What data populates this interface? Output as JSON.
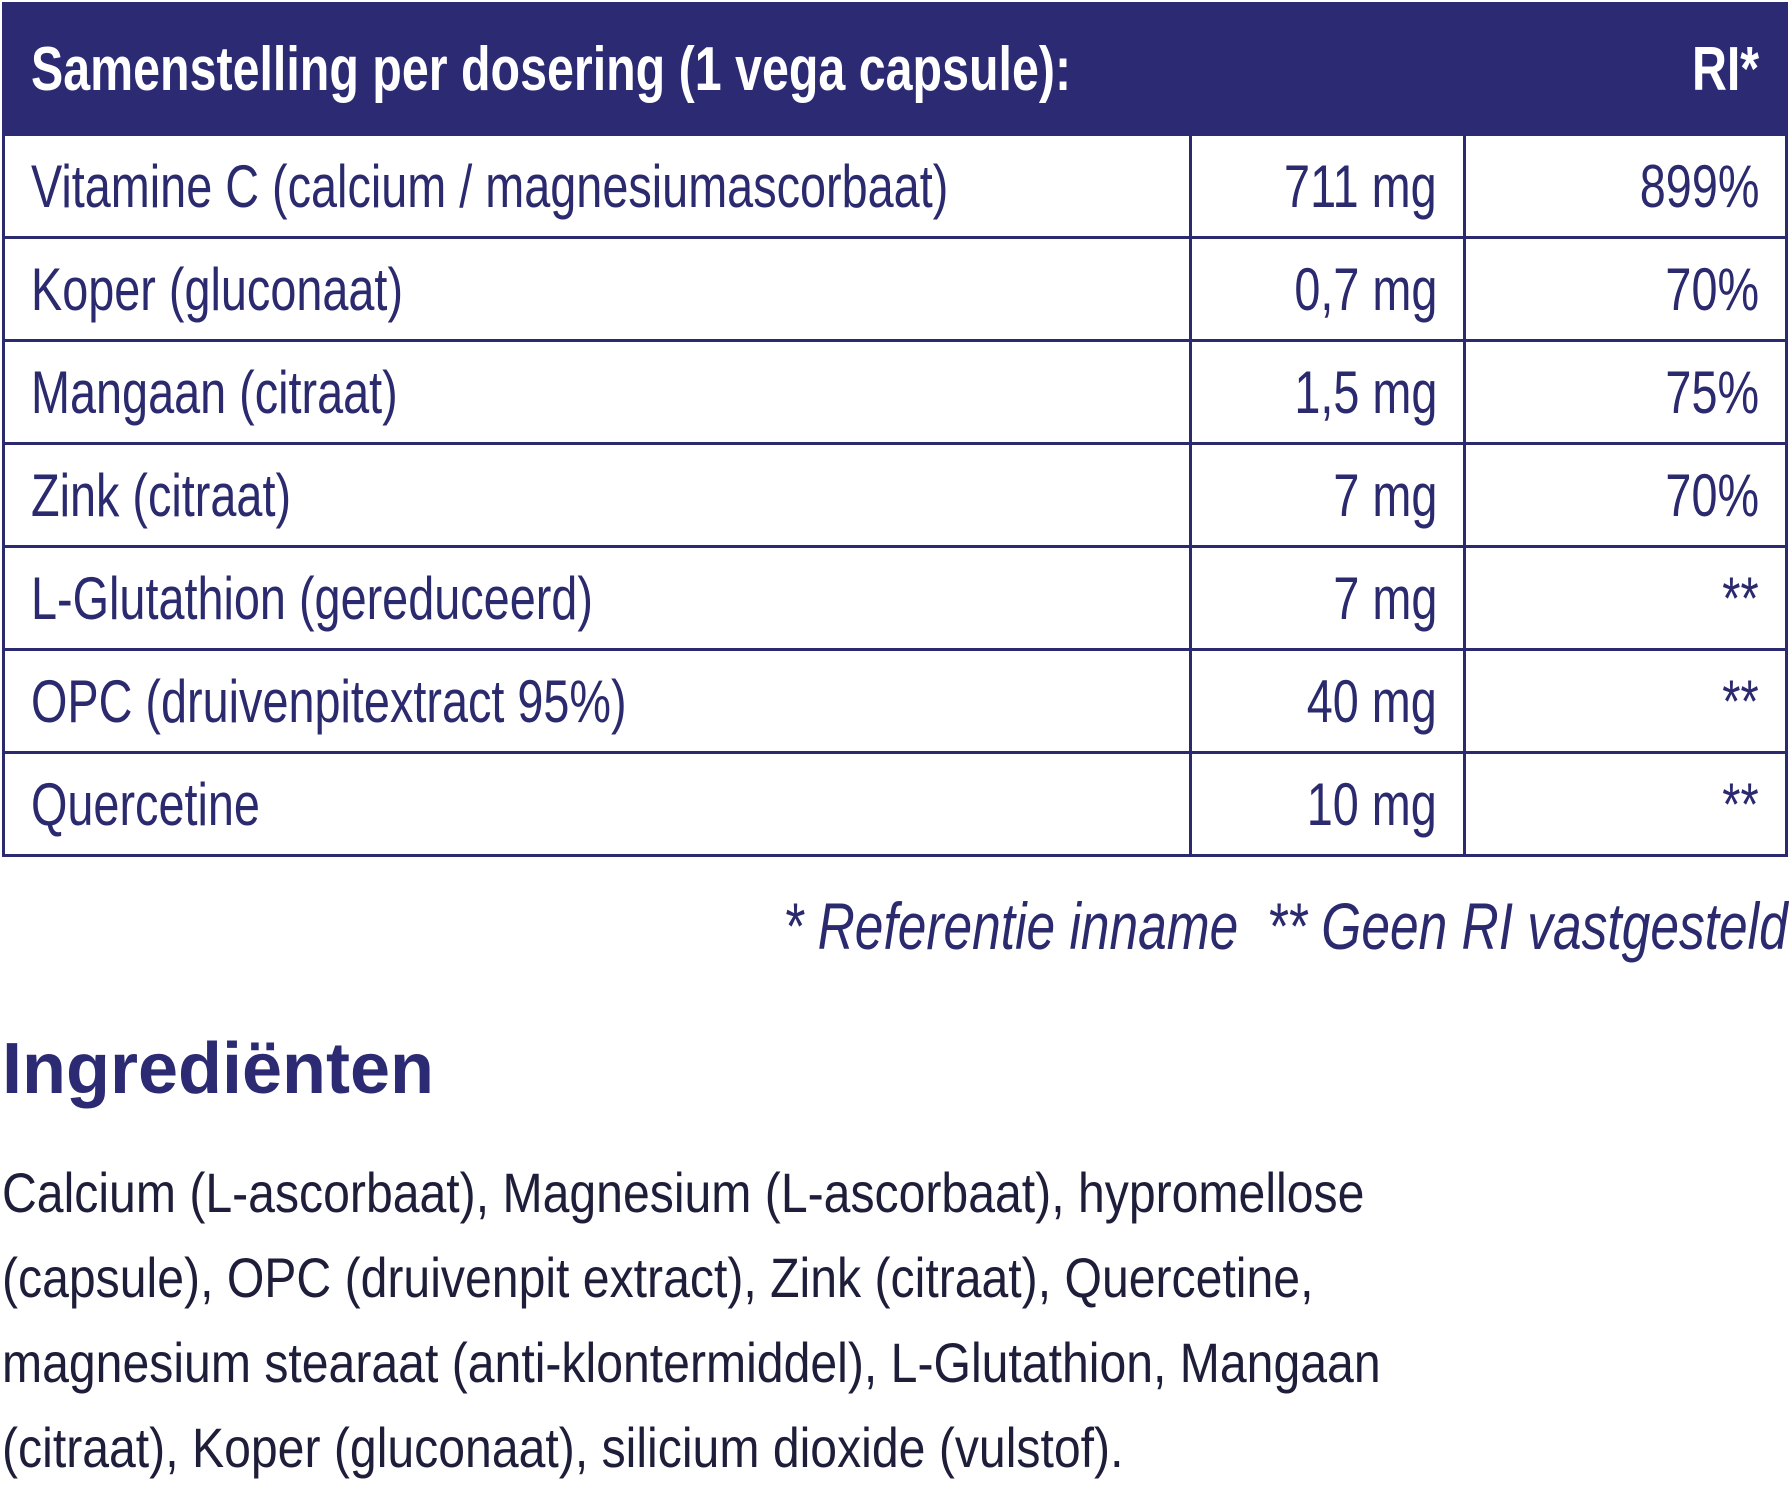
{
  "table": {
    "header": [
      "Samenstelling per dosering (1 vega capsule):",
      "RI*"
    ],
    "rows": [
      [
        "Vitamine C (calcium / magnesiumascorbaat)",
        "711 mg",
        "899%"
      ],
      [
        "Koper (gluconaat)",
        "0,7 mg",
        "70%"
      ],
      [
        "Mangaan (citraat)",
        "1,5 mg",
        "75%"
      ],
      [
        "Zink (citraat)",
        "7 mg",
        "70%"
      ],
      [
        "L-Glutathion (gereduceerd)",
        "7 mg",
        "**"
      ],
      [
        "OPC (druivenpitextract 95%)",
        "40 mg",
        "**"
      ],
      [
        "Quercetine",
        "10 mg",
        "**"
      ]
    ],
    "footnote": "* Referentie inname  ** Geen RI vastgesteld"
  },
  "ingredients": {
    "title": "Ingrediënten",
    "lines": [
      "Calcium (L-ascorbaat), Magnesium (L-ascorbaat), hypromellose",
      "(capsule), OPC (druivenpit extract), Zink (citraat), Quercetine,",
      "magnesium stearaat (anti-klontermiddel), L-Glutathion, Mangaan",
      "(citraat), Koper (gluconaat), silicium dioxide (vulstof)."
    ]
  }
}
